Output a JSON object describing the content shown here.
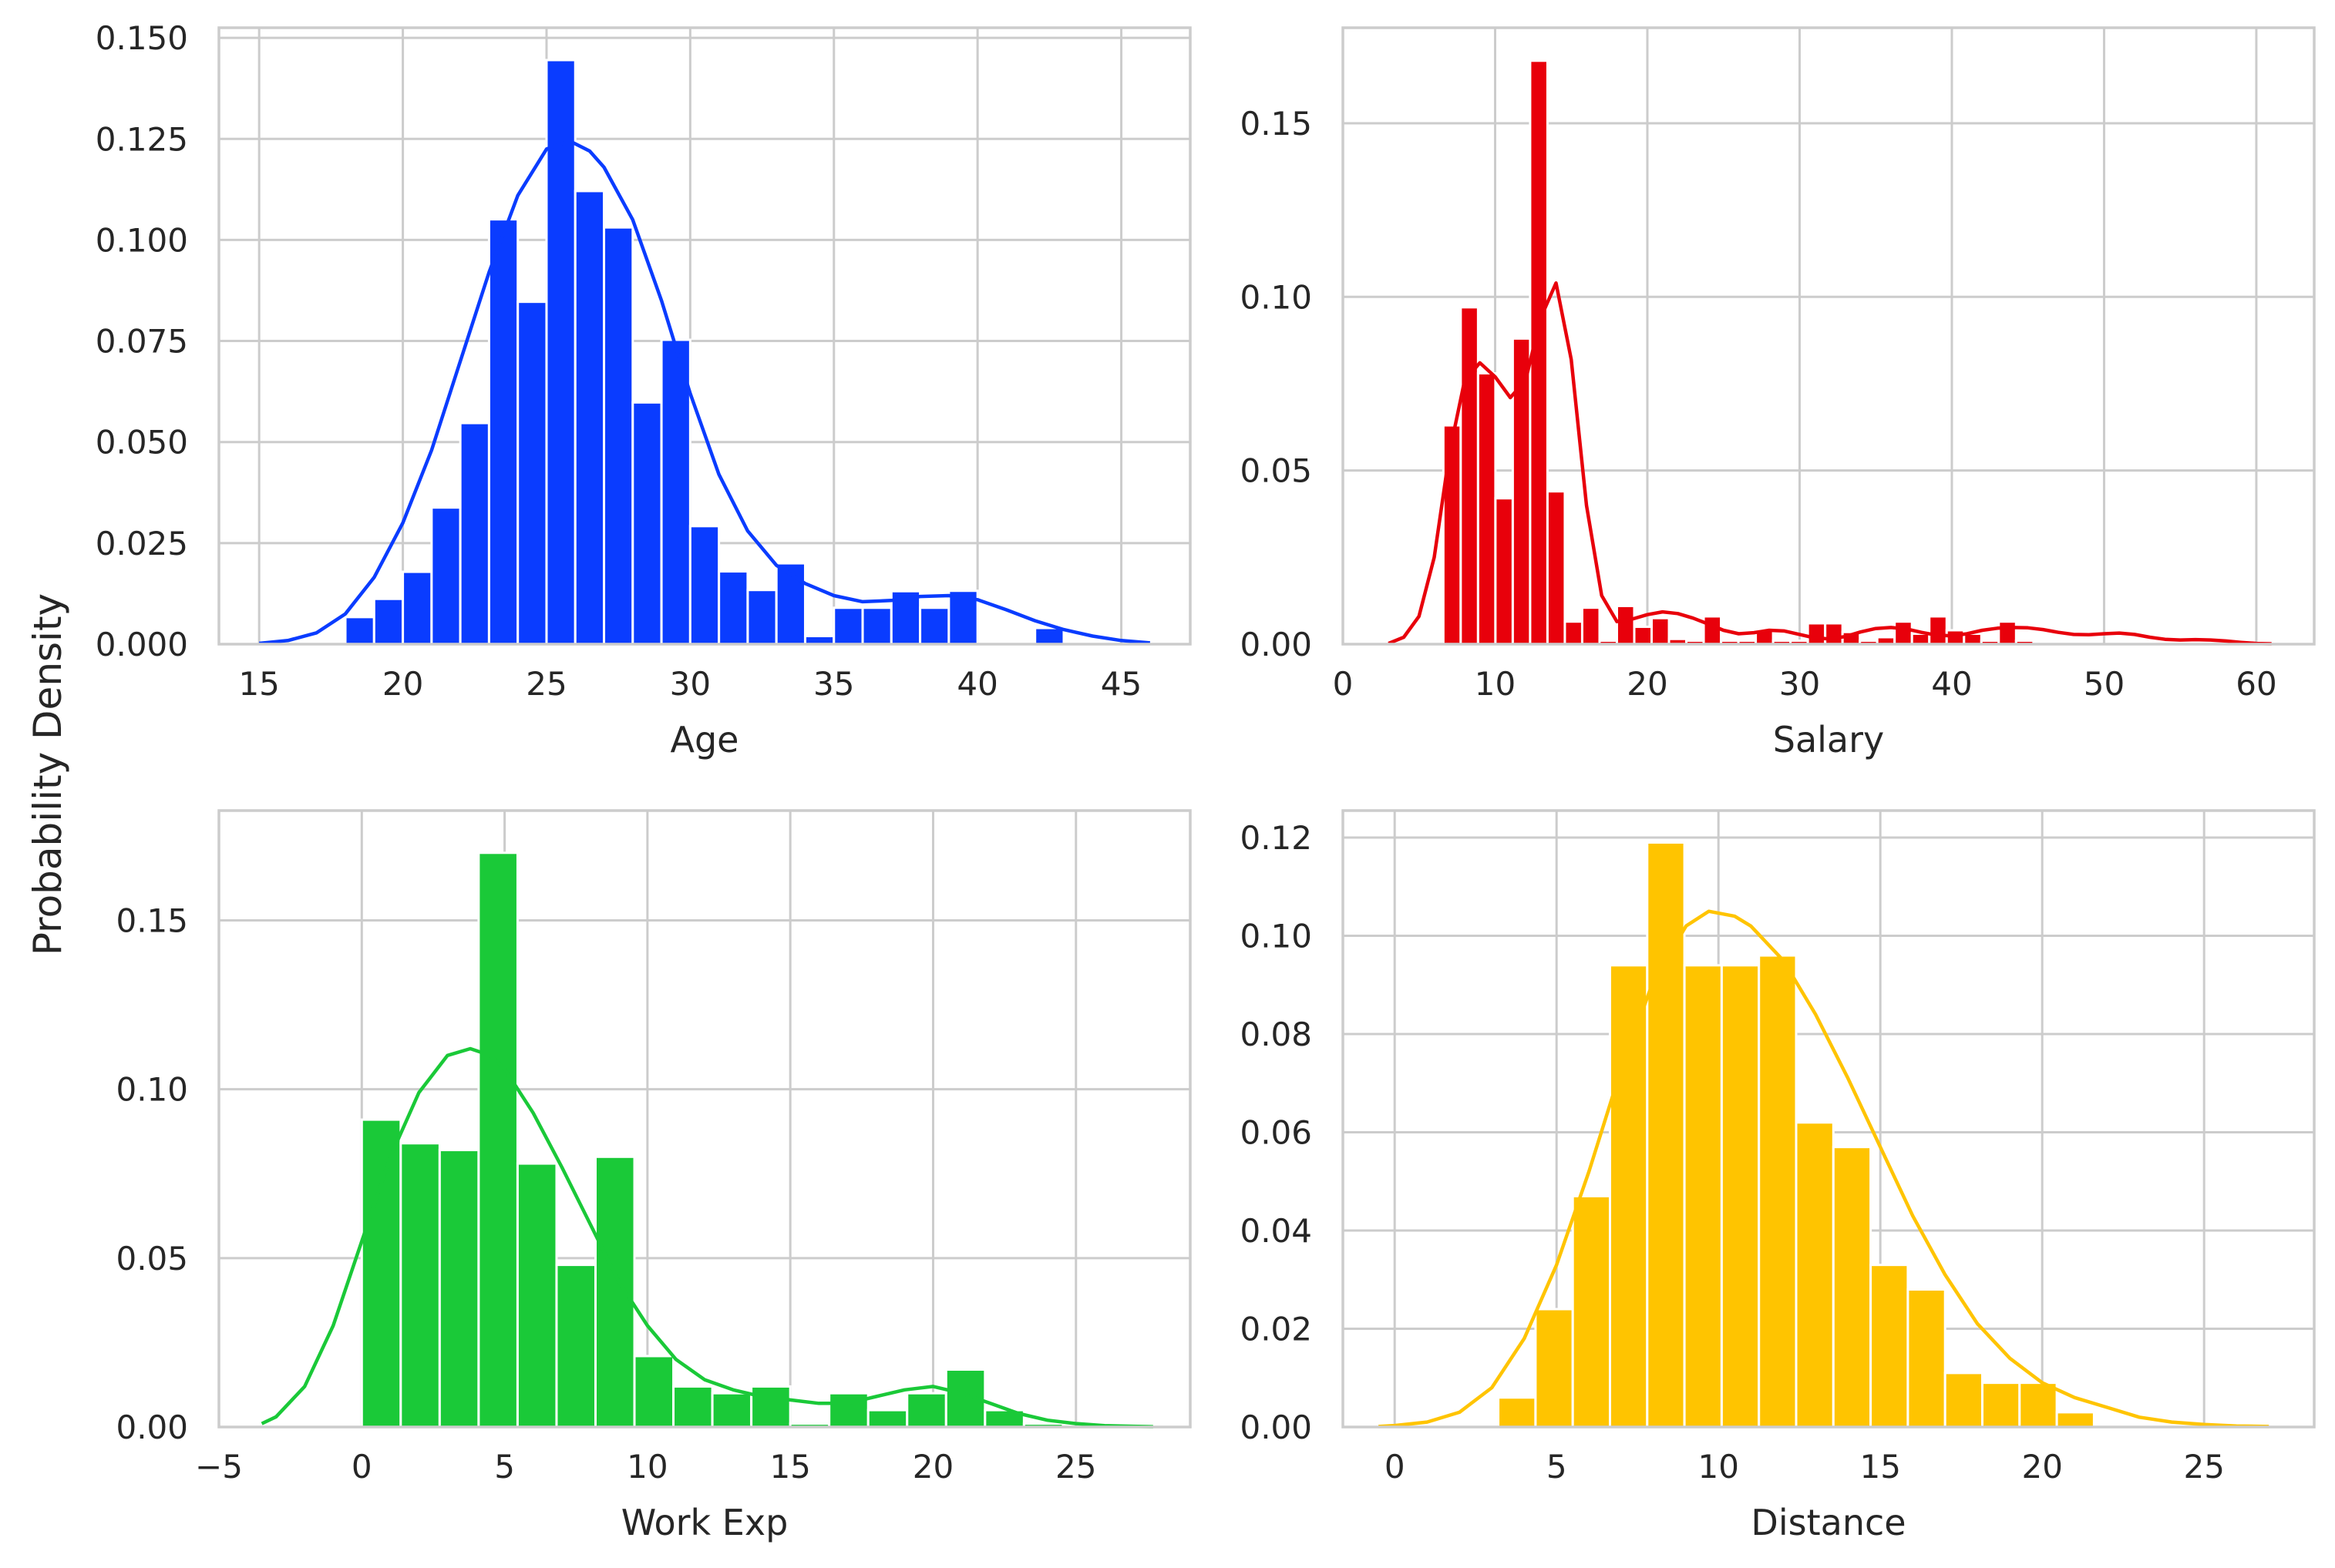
{
  "figure": {
    "shared_ylabel": "Probability Density"
  },
  "chart_data": [
    {
      "type": "histogram",
      "id": "age",
      "xlabel": "Age",
      "ylabel": "Probability Density",
      "color": "#0a3cff",
      "grid": true,
      "xlim": [
        13.6,
        47.4
      ],
      "ylim": [
        0,
        0.1525
      ],
      "xticks": [
        15,
        20,
        25,
        30,
        35,
        40,
        45
      ],
      "yticks": [
        0.0,
        0.025,
        0.05,
        0.075,
        0.1,
        0.125,
        0.15
      ],
      "ytick_labels": [
        "0.000",
        "0.025",
        "0.050",
        "0.075",
        "0.100",
        "0.125",
        "0.150"
      ],
      "bins_start": 18.0,
      "bin_width": 1.0,
      "densities": [
        0.0067,
        0.0112,
        0.0179,
        0.0338,
        0.0547,
        0.1051,
        0.0847,
        0.1445,
        0.1121,
        0.1031,
        0.0598,
        0.0753,
        0.0292,
        0.018,
        0.0134,
        0.02,
        0.002,
        0.009,
        0.009,
        0.0131,
        0.009,
        0.0132,
        0.0,
        0.0,
        0.004
      ],
      "kde": [
        [
          15,
          0.0002
        ],
        [
          16,
          0.0009
        ],
        [
          17,
          0.0028
        ],
        [
          18,
          0.0075
        ],
        [
          19,
          0.0165
        ],
        [
          20,
          0.03
        ],
        [
          21,
          0.048
        ],
        [
          22,
          0.07
        ],
        [
          23,
          0.092
        ],
        [
          24,
          0.111
        ],
        [
          25,
          0.1225
        ],
        [
          25.8,
          0.1245
        ],
        [
          26.5,
          0.122
        ],
        [
          27,
          0.118
        ],
        [
          28,
          0.105
        ],
        [
          29,
          0.085
        ],
        [
          30,
          0.062
        ],
        [
          31,
          0.042
        ],
        [
          32,
          0.028
        ],
        [
          33,
          0.0195
        ],
        [
          34,
          0.015
        ],
        [
          35,
          0.012
        ],
        [
          36,
          0.0105
        ],
        [
          37,
          0.0108
        ],
        [
          38,
          0.0118
        ],
        [
          39,
          0.012
        ],
        [
          40,
          0.011
        ],
        [
          41,
          0.0085
        ],
        [
          42,
          0.0058
        ],
        [
          43,
          0.0036
        ],
        [
          44,
          0.002
        ],
        [
          45,
          0.0009
        ],
        [
          46,
          0.0003
        ]
      ]
    },
    {
      "type": "histogram",
      "id": "salary",
      "xlabel": "Salary",
      "ylabel": "Probability Density",
      "color": "#e8000b",
      "grid": true,
      "xlim": [
        0,
        63.8
      ],
      "ylim": [
        0,
        0.1775
      ],
      "xticks": [
        0,
        10,
        20,
        30,
        40,
        50,
        60
      ],
      "yticks": [
        0.0,
        0.05,
        0.1,
        0.15
      ],
      "ytick_labels": [
        "0.00",
        "0.05",
        "0.10",
        "0.15"
      ],
      "bins_start": 6.6,
      "bin_width": 1.14,
      "densities": [
        0.063,
        0.097,
        0.078,
        0.042,
        0.088,
        0.168,
        0.044,
        0.0065,
        0.0105,
        0.001,
        0.011,
        0.005,
        0.0075,
        0.0015,
        0.001,
        0.008,
        0.001,
        0.001,
        0.004,
        0.001,
        0.001,
        0.006,
        0.006,
        0.0035,
        0.001,
        0.002,
        0.0065,
        0.003,
        0.008,
        0.004,
        0.003,
        0.001,
        0.0065,
        0.001
      ],
      "kde": [
        [
          3,
          0.0002
        ],
        [
          4,
          0.002
        ],
        [
          5,
          0.008
        ],
        [
          6,
          0.025
        ],
        [
          7,
          0.055
        ],
        [
          8,
          0.076
        ],
        [
          9,
          0.081
        ],
        [
          10,
          0.077
        ],
        [
          11,
          0.071
        ],
        [
          12,
          0.076
        ],
        [
          13,
          0.094
        ],
        [
          14,
          0.104
        ],
        [
          15,
          0.082
        ],
        [
          16,
          0.04
        ],
        [
          17,
          0.014
        ],
        [
          18,
          0.0065
        ],
        [
          19,
          0.0072
        ],
        [
          20,
          0.0085
        ],
        [
          21,
          0.0093
        ],
        [
          22,
          0.0088
        ],
        [
          23,
          0.0075
        ],
        [
          24,
          0.0058
        ],
        [
          25,
          0.004
        ],
        [
          26,
          0.003
        ],
        [
          27,
          0.0033
        ],
        [
          28,
          0.004
        ],
        [
          29,
          0.0038
        ],
        [
          30,
          0.0028
        ],
        [
          31,
          0.0018
        ],
        [
          32,
          0.0015
        ],
        [
          33,
          0.0022
        ],
        [
          34,
          0.0035
        ],
        [
          35,
          0.0045
        ],
        [
          36,
          0.0048
        ],
        [
          37,
          0.0044
        ],
        [
          38,
          0.0034
        ],
        [
          39,
          0.0026
        ],
        [
          40,
          0.0024
        ],
        [
          41,
          0.003
        ],
        [
          42,
          0.004
        ],
        [
          43,
          0.0046
        ],
        [
          44,
          0.0048
        ],
        [
          45,
          0.0047
        ],
        [
          46,
          0.0042
        ],
        [
          47,
          0.0034
        ],
        [
          48,
          0.0028
        ],
        [
          49,
          0.0027
        ],
        [
          50,
          0.003
        ],
        [
          51,
          0.0032
        ],
        [
          52,
          0.0028
        ],
        [
          53,
          0.002
        ],
        [
          54,
          0.0014
        ],
        [
          55,
          0.0012
        ],
        [
          56,
          0.0013
        ],
        [
          57,
          0.0012
        ],
        [
          58,
          0.0009
        ],
        [
          59,
          0.0005
        ],
        [
          60,
          0.0002
        ],
        [
          61,
          0.0001
        ]
      ]
    },
    {
      "type": "histogram",
      "id": "workexp",
      "xlabel": "Work Exp",
      "ylabel": "Probability Density",
      "color": "#1ac938",
      "grid": true,
      "xlim": [
        -5,
        29
      ],
      "ylim": [
        0,
        0.1825
      ],
      "xticks": [
        -5,
        0,
        5,
        10,
        15,
        20,
        25
      ],
      "yticks": [
        0.0,
        0.05,
        0.1,
        0.15
      ],
      "ytick_labels": [
        "0.00",
        "0.05",
        "0.10",
        "0.15"
      ],
      "xtick_labels": [
        "−5",
        "0",
        "5",
        "10",
        "15",
        "20",
        "25"
      ],
      "bins_start": 0.0,
      "bin_width": 1.3636,
      "densities": [
        0.091,
        0.084,
        0.082,
        0.17,
        0.078,
        0.048,
        0.08,
        0.021,
        0.012,
        0.01,
        0.012,
        0.001,
        0.01,
        0.005,
        0.01,
        0.017,
        0.005,
        0.001
      ],
      "kde": [
        [
          -3.5,
          0.001
        ],
        [
          -3,
          0.003
        ],
        [
          -2,
          0.012
        ],
        [
          -1,
          0.03
        ],
        [
          0,
          0.055
        ],
        [
          1,
          0.08
        ],
        [
          2,
          0.099
        ],
        [
          3,
          0.11
        ],
        [
          3.8,
          0.112
        ],
        [
          4.5,
          0.11
        ],
        [
          5,
          0.106
        ],
        [
          6,
          0.093
        ],
        [
          7,
          0.077
        ],
        [
          8,
          0.06
        ],
        [
          9,
          0.043
        ],
        [
          10,
          0.03
        ],
        [
          11,
          0.02
        ],
        [
          12,
          0.014
        ],
        [
          13,
          0.011
        ],
        [
          14,
          0.009
        ],
        [
          15,
          0.008
        ],
        [
          16,
          0.007
        ],
        [
          17,
          0.007
        ],
        [
          18,
          0.009
        ],
        [
          19,
          0.011
        ],
        [
          20,
          0.012
        ],
        [
          21,
          0.01
        ],
        [
          22,
          0.007
        ],
        [
          23,
          0.004
        ],
        [
          24,
          0.002
        ],
        [
          25,
          0.001
        ],
        [
          26,
          0.0004
        ],
        [
          27,
          0.0002
        ],
        [
          27.7,
          0.0001
        ]
      ]
    },
    {
      "type": "histogram",
      "id": "distance",
      "xlabel": "Distance",
      "ylabel": "Probability Density",
      "color": "#ffc400",
      "grid": true,
      "xlim": [
        -1.6,
        28.4
      ],
      "ylim": [
        0,
        0.1255
      ],
      "xticks": [
        0,
        5,
        10,
        15,
        20,
        25
      ],
      "yticks": [
        0.0,
        0.02,
        0.04,
        0.06,
        0.08,
        0.1,
        0.12
      ],
      "ytick_labels": [
        "0.00",
        "0.02",
        "0.04",
        "0.06",
        "0.08",
        "0.10",
        "0.12"
      ],
      "bins_start": 3.2,
      "bin_width": 1.15,
      "densities": [
        0.006,
        0.024,
        0.047,
        0.094,
        0.119,
        0.094,
        0.094,
        0.096,
        0.062,
        0.057,
        0.033,
        0.028,
        0.011,
        0.009,
        0.009,
        0.003
      ],
      "kde": [
        [
          -0.5,
          0.0001
        ],
        [
          0,
          0.0003
        ],
        [
          1,
          0.001
        ],
        [
          2,
          0.003
        ],
        [
          3,
          0.008
        ],
        [
          4,
          0.018
        ],
        [
          5,
          0.033
        ],
        [
          6,
          0.052
        ],
        [
          7,
          0.073
        ],
        [
          8,
          0.091
        ],
        [
          9,
          0.102
        ],
        [
          9.7,
          0.105
        ],
        [
          10.5,
          0.104
        ],
        [
          11,
          0.102
        ],
        [
          12,
          0.095
        ],
        [
          13,
          0.084
        ],
        [
          14,
          0.071
        ],
        [
          15,
          0.057
        ],
        [
          16,
          0.043
        ],
        [
          17,
          0.031
        ],
        [
          18,
          0.021
        ],
        [
          19,
          0.014
        ],
        [
          20,
          0.009
        ],
        [
          21,
          0.006
        ],
        [
          22,
          0.004
        ],
        [
          23,
          0.002
        ],
        [
          24,
          0.001
        ],
        [
          25,
          0.0005
        ],
        [
          26,
          0.0002
        ],
        [
          27,
          0.0001
        ]
      ]
    }
  ]
}
